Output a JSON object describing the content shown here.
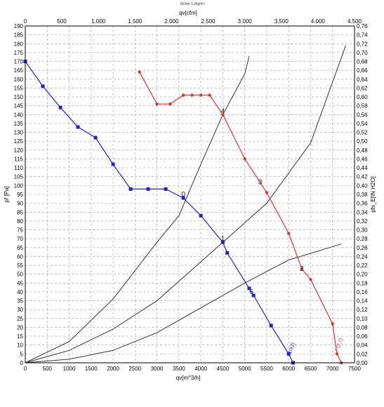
{
  "chart_data": {
    "type": "line",
    "title": "Dichte 1,2kg/m³",
    "xlabel_bottom": "qv[m^3/h]",
    "xlabel_top": "qv[cfm]",
    "ylabel_left": "pf [Pa]",
    "ylabel_right": "pfs_E[IN H2O]",
    "x_bottom": {
      "min": 0,
      "max": 7500,
      "ticks": [
        0,
        500,
        1000,
        1500,
        2000,
        2500,
        3000,
        3500,
        4000,
        4500,
        5000,
        5500,
        6000,
        6500,
        7000,
        7500
      ]
    },
    "x_top": {
      "min": 0,
      "max": 4500,
      "ticks": [
        "0",
        "500",
        "1.000",
        "1.500",
        "2.000",
        "2.500",
        "3.000",
        "3.500",
        "4.000",
        "4.500"
      ],
      "tick_values": [
        0,
        500,
        1000,
        1500,
        2000,
        2500,
        3000,
        3500,
        4000,
        4500
      ]
    },
    "y_left": {
      "min": 0,
      "max": 190,
      "step": 5
    },
    "y_right": {
      "min": 0,
      "max": 0.76,
      "step": 0.02
    },
    "grid": true,
    "series": [
      {
        "color": "#2222cc",
        "marker": "square",
        "points": [
          [
            0,
            170
          ],
          [
            400,
            156
          ],
          [
            800,
            144
          ],
          [
            1200,
            133
          ],
          [
            1600,
            127
          ],
          [
            2000,
            112
          ],
          [
            2400,
            98
          ],
          [
            2800,
            98
          ],
          [
            3200,
            98
          ],
          [
            3600,
            93
          ],
          [
            4000,
            83
          ],
          [
            4500,
            68
          ],
          [
            4600,
            62
          ],
          [
            5100,
            42
          ],
          [
            5200,
            38
          ],
          [
            5600,
            21
          ],
          [
            6000,
            5
          ],
          [
            6100,
            0
          ]
        ]
      },
      {
        "color": "#dd3333",
        "marker": "circle",
        "points": [
          [
            2600,
            164
          ],
          [
            3000,
            146
          ],
          [
            3300,
            146
          ],
          [
            3600,
            151
          ],
          [
            3800,
            151
          ],
          [
            4000,
            151
          ],
          [
            4200,
            151
          ],
          [
            4500,
            140
          ],
          [
            5000,
            115
          ],
          [
            5500,
            96
          ],
          [
            6000,
            73
          ],
          [
            6300,
            53
          ],
          [
            6500,
            47
          ],
          [
            7000,
            22
          ],
          [
            7100,
            5
          ],
          [
            7200,
            0
          ]
        ]
      }
    ],
    "system_curves": [
      {
        "points": [
          [
            0,
            0
          ],
          [
            1000,
            2
          ],
          [
            2000,
            7
          ],
          [
            3000,
            17
          ],
          [
            4000,
            31
          ],
          [
            5000,
            45
          ],
          [
            6000,
            58
          ],
          [
            7200,
            67
          ]
        ]
      },
      {
        "points": [
          [
            0,
            0
          ],
          [
            1000,
            7
          ],
          [
            2000,
            19
          ],
          [
            3000,
            35
          ],
          [
            4000,
            57
          ],
          [
            4500,
            68
          ],
          [
            5500,
            90
          ],
          [
            6500,
            124
          ],
          [
            7300,
            179
          ]
        ]
      },
      {
        "points": [
          [
            0,
            0
          ],
          [
            1000,
            12
          ],
          [
            2000,
            36
          ],
          [
            3000,
            68
          ],
          [
            3500,
            83
          ],
          [
            4000,
            112
          ],
          [
            4500,
            140
          ],
          [
            5000,
            163
          ],
          [
            5100,
            173
          ]
        ]
      }
    ],
    "operating_point_labels": [
      {
        "text": "0",
        "x": 3600,
        "y": 95
      },
      {
        "text": "1",
        "x": 4500,
        "y": 70
      },
      {
        "text": "2",
        "x": 6300,
        "y": 53
      },
      {
        "text": "3",
        "x": 5350,
        "y": 102
      },
      {
        "text": "4",
        "x": 4500,
        "y": 142
      },
      {
        "text": "6",
        "x": 5150,
        "y": 40
      }
    ],
    "curve_end_labels": [
      {
        "text": "10(2)",
        "x": 6050,
        "y": 5,
        "color": "#2222cc"
      },
      {
        "text": "7 (2,7)",
        "x": 7120,
        "y": 6,
        "color": "#dd3333"
      }
    ]
  }
}
